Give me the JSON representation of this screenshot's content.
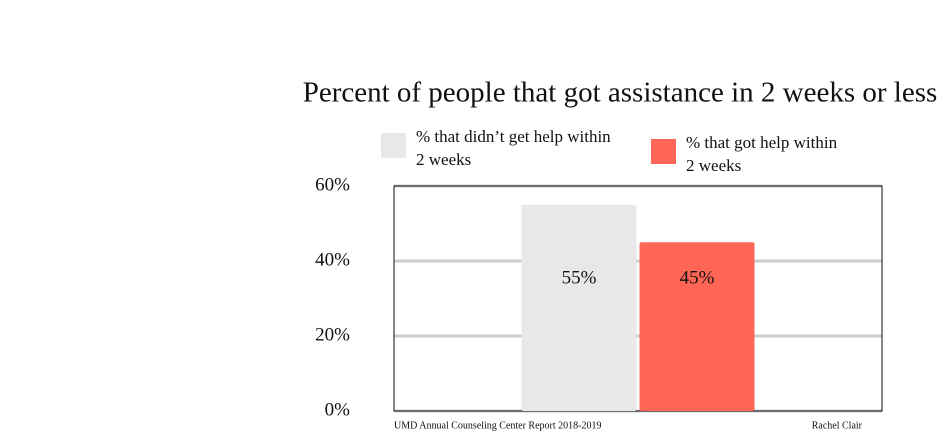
{
  "chart_data": {
    "type": "bar",
    "title": "Percent of people that got assistance in 2 weeks or less",
    "categories": [
      null
    ],
    "series": [
      {
        "name": "% that didn’t get help within 2 weeks",
        "color": "#e8e8ea",
        "values": [
          55
        ],
        "value_labels": [
          "55%"
        ]
      },
      {
        "name": "% that got help within 2 weeks",
        "color": "#ff6655",
        "values": [
          45
        ],
        "value_labels": [
          "45%"
        ]
      }
    ],
    "ylim": [
      0,
      60
    ],
    "yticks": [
      {
        "value": 0,
        "label": "0%"
      },
      {
        "value": 20,
        "label": "20%"
      },
      {
        "value": 40,
        "label": "40%"
      },
      {
        "value": 60,
        "label": "60%"
      }
    ],
    "grid": true,
    "source": "UMD Annual Counseling Center Report 2018-2019",
    "credit": "Rachel Clair"
  }
}
